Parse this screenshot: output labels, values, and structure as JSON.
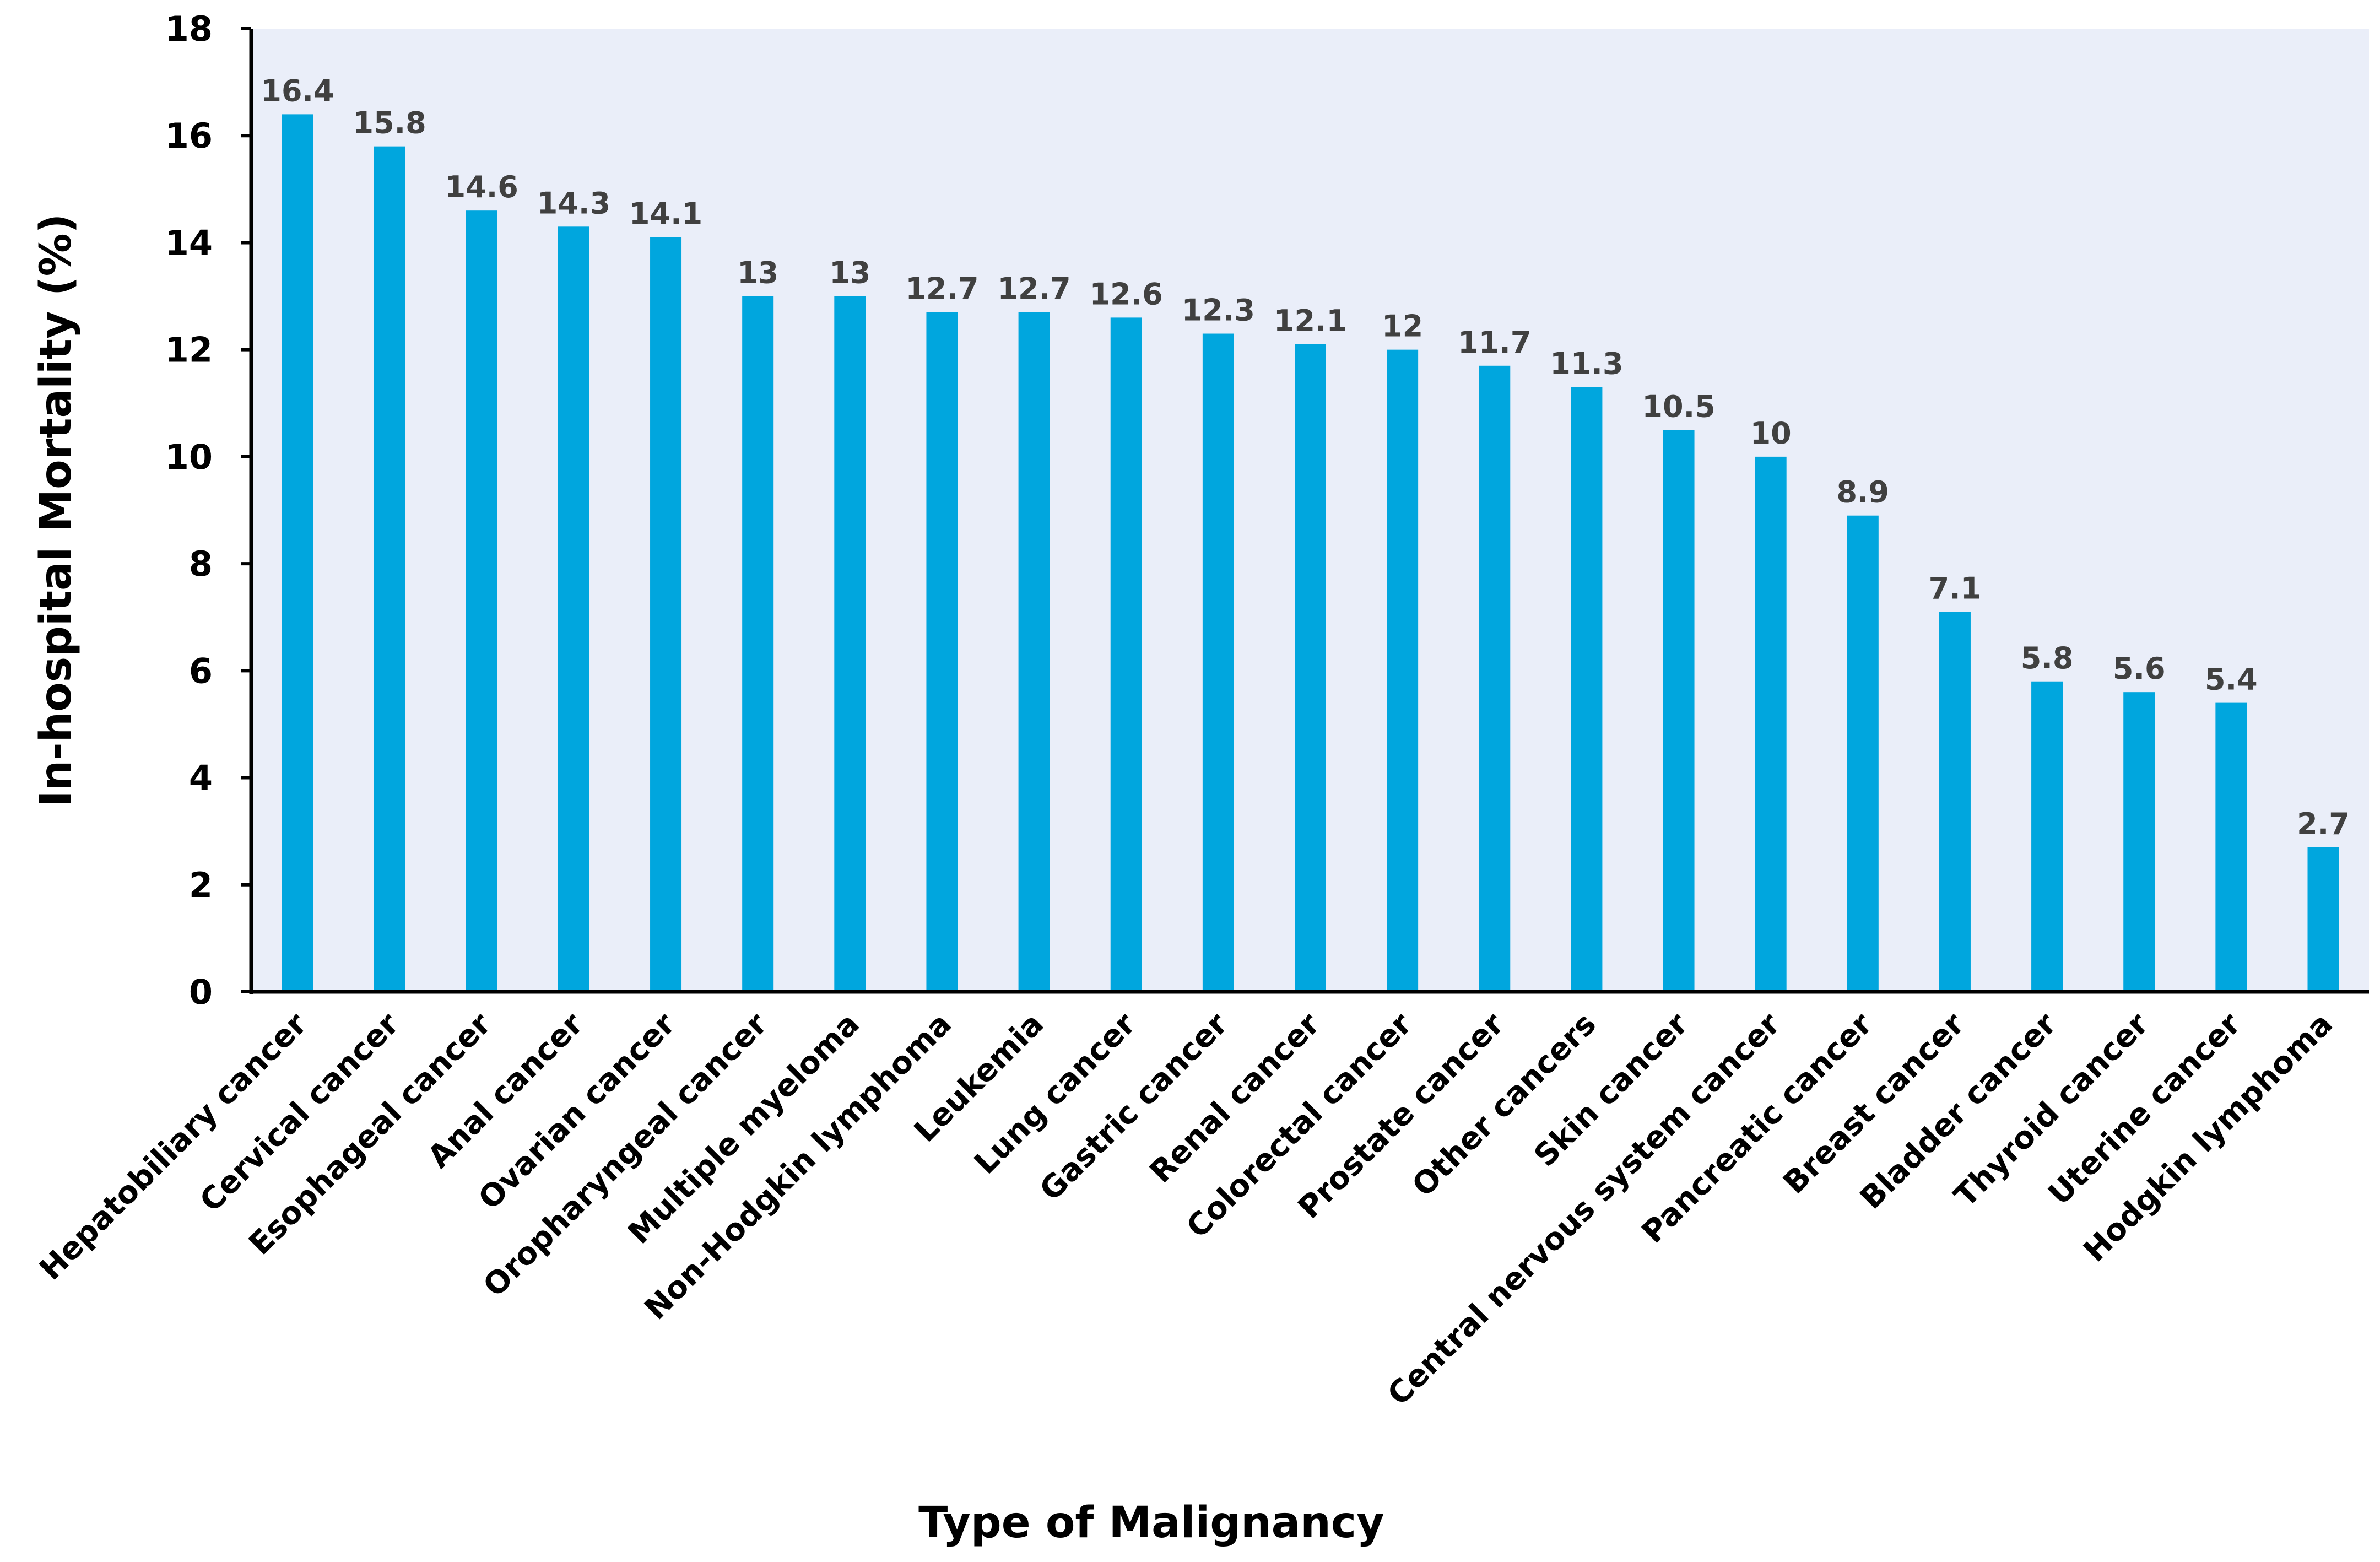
{
  "chart_data": {
    "type": "bar",
    "title": "",
    "xlabel": "Type of Malignancy",
    "ylabel": "In-hospital Mortality (%)",
    "ylim": [
      0,
      18
    ],
    "yticks": [
      0,
      2,
      4,
      6,
      8,
      10,
      12,
      14,
      16,
      18
    ],
    "grid": false,
    "categories": [
      "Hepatobiliary cancer",
      "Cervical cancer",
      "Esophageal cancer",
      "Anal cancer",
      "Ovarian cancer",
      "Oropharyngeal cancer",
      "Multiple myeloma",
      "Non-Hodgkin lymphoma",
      "Leukemia",
      "Lung cancer",
      "Gastric cancer",
      "Renal cancer",
      "Colorectal cancer",
      "Prostate cancer",
      "Other cancers",
      "Skin cancer",
      "Central nervous system cancer",
      "Pancreatic cancer",
      "Breast cancer",
      "Bladder cancer",
      "Thyroid cancer",
      "Uterine cancer",
      "Hodgkin lymphoma"
    ],
    "values": [
      16.4,
      15.8,
      14.6,
      14.3,
      14.1,
      13,
      13,
      12.7,
      12.7,
      12.6,
      12.3,
      12.1,
      12,
      11.7,
      11.3,
      10.5,
      10,
      8.9,
      7.1,
      5.8,
      5.6,
      5.4,
      2.7
    ],
    "data_labels": [
      "16.4",
      "15.8",
      "14.6",
      "14.3",
      "14.1",
      "13",
      "13",
      "12.7",
      "12.7",
      "12.6",
      "12.3",
      "12.1",
      "12",
      "11.7",
      "11.3",
      "10.5",
      "10",
      "8.9",
      "7.1",
      "5.8",
      "5.6",
      "5.4",
      "2.7"
    ],
    "colors": {
      "bar": "#00A6DE",
      "plot_background": "#EAEEF9",
      "axis": "#000000",
      "value_label": "#404040"
    }
  }
}
